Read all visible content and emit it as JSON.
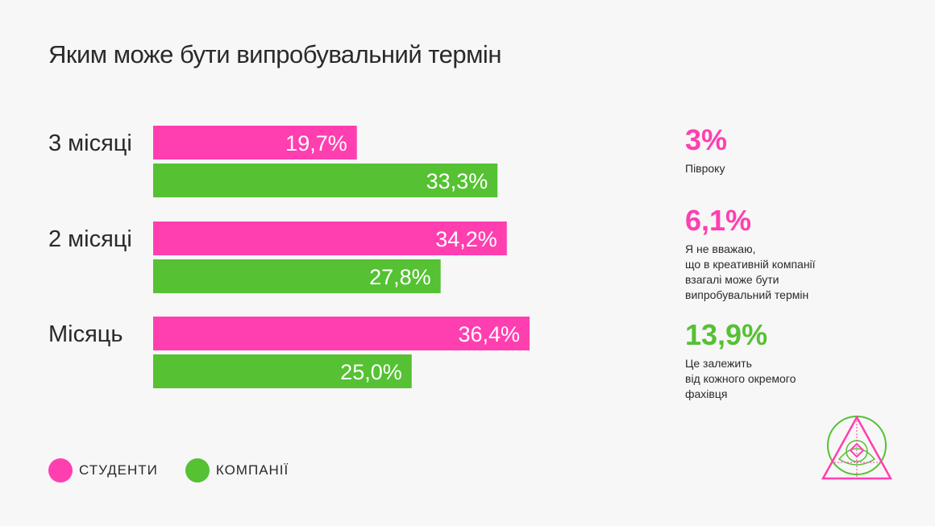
{
  "title": "Яким може бути випробувальний термін",
  "colors": {
    "students": "#ff3fb0",
    "companies": "#55c133"
  },
  "chart_data": {
    "type": "bar",
    "orientation": "horizontal",
    "categories": [
      "3 місяці",
      "2 місяці",
      "Місяць"
    ],
    "series": [
      {
        "name": "СТУДЕНТИ",
        "color": "#ff3fb0",
        "values": [
          19.7,
          34.2,
          36.4
        ],
        "labels": [
          "19,7%",
          "34,2%",
          "36,4%"
        ]
      },
      {
        "name": "КОМПАНІЇ",
        "color": "#55c133",
        "values": [
          33.3,
          27.8,
          25.0
        ],
        "labels": [
          "33,3%",
          "27,8%",
          "25,0%"
        ]
      }
    ],
    "xlim": [
      0,
      36.4
    ],
    "grid": false,
    "legend": "bottom-left"
  },
  "stats": [
    {
      "value": "3%",
      "desc": "Півроку",
      "color": "#ff3fb0"
    },
    {
      "value": "6,1%",
      "desc": "Я не вважаю,\nщо в креативній компанії\nвзагалі може бути\nвипробувальний термін",
      "color": "#ff3fb0"
    },
    {
      "value": "13,9%",
      "desc": "Це залежить\nвід кожного окремого\nфахівця",
      "color": "#55c133"
    }
  ],
  "legend": {
    "students": "СТУДЕНТИ",
    "companies": "КОМПАНІЇ"
  },
  "logo": {
    "icon": "triangle-eye-logo-icon"
  }
}
